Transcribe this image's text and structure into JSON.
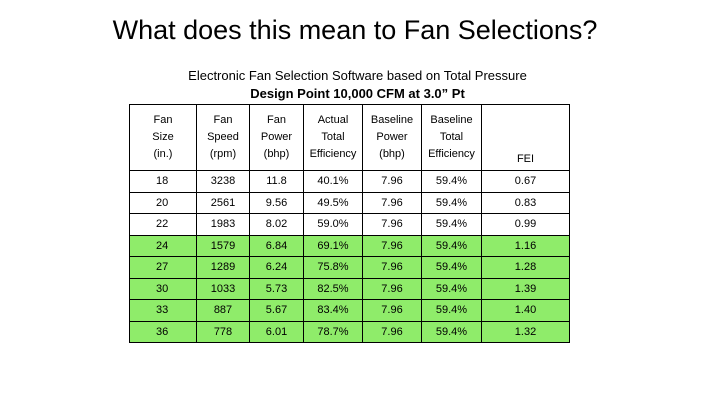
{
  "title": "What does this mean to Fan Selections?",
  "subtitle": "Electronic Fan Selection Software based on Total Pressure",
  "design_point": "Design Point 10,000 CFM at 3.0” Pt",
  "table": {
    "headers": [
      [
        "Fan",
        "Size",
        "(in.)"
      ],
      [
        "Fan",
        "Speed",
        "(rpm)"
      ],
      [
        "Fan",
        "Power",
        "(bhp)"
      ],
      [
        "Actual",
        "Total",
        "Efficiency"
      ],
      [
        "Baseline",
        "Power",
        "(bhp)"
      ],
      [
        "Baseline",
        "Total",
        "Efficiency"
      ],
      [
        "FEI"
      ]
    ],
    "rows": [
      {
        "highlight": false,
        "cells": [
          "18",
          "3238",
          "11.8",
          "40.1%",
          "7.96",
          "59.4%",
          "0.67"
        ]
      },
      {
        "highlight": false,
        "cells": [
          "20",
          "2561",
          "9.56",
          "49.5%",
          "7.96",
          "59.4%",
          "0.83"
        ]
      },
      {
        "highlight": false,
        "cells": [
          "22",
          "1983",
          "8.02",
          "59.0%",
          "7.96",
          "59.4%",
          "0.99"
        ]
      },
      {
        "highlight": true,
        "cells": [
          "24",
          "1579",
          "6.84",
          "69.1%",
          "7.96",
          "59.4%",
          "1.16"
        ]
      },
      {
        "highlight": true,
        "cells": [
          "27",
          "1289",
          "6.24",
          "75.8%",
          "7.96",
          "59.4%",
          "1.28"
        ]
      },
      {
        "highlight": true,
        "cells": [
          "30",
          "1033",
          "5.73",
          "82.5%",
          "7.96",
          "59.4%",
          "1.39"
        ]
      },
      {
        "highlight": true,
        "cells": [
          "33",
          "887",
          "5.67",
          "83.4%",
          "7.96",
          "59.4%",
          "1.40"
        ]
      },
      {
        "highlight": true,
        "cells": [
          "36",
          "778",
          "6.01",
          "78.7%",
          "7.96",
          "59.4%",
          "1.32"
        ]
      }
    ]
  },
  "colors": {
    "highlight_row": "#8fec6a",
    "background": "#ffffff"
  }
}
